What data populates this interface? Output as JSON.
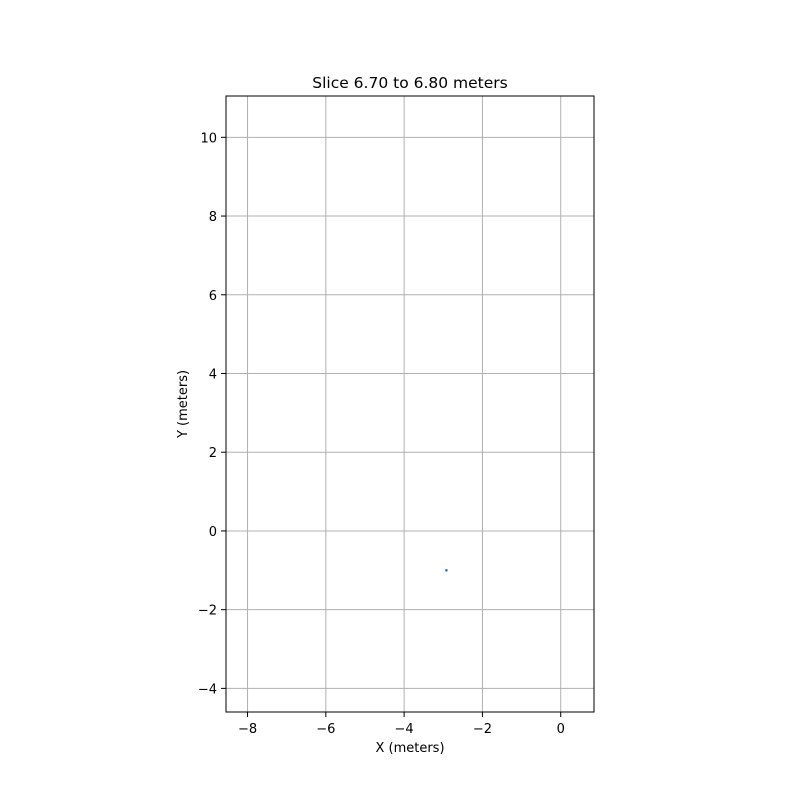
{
  "chart_data": {
    "type": "scatter",
    "title": "Slice 6.70 to 6.80 meters",
    "xlabel": "X (meters)",
    "ylabel": "Y (meters)",
    "xlim": [
      -8.55,
      0.85
    ],
    "ylim": [
      -4.6,
      11.05
    ],
    "xticks": [
      -8,
      -6,
      -4,
      -2,
      0
    ],
    "xtick_labels": [
      "−8",
      "−6",
      "−4",
      "−2",
      "0"
    ],
    "yticks": [
      -4,
      -2,
      0,
      2,
      4,
      6,
      8,
      10
    ],
    "ytick_labels": [
      "−4",
      "−2",
      "0",
      "2",
      "4",
      "6",
      "8",
      "10"
    ],
    "grid": true,
    "points": [
      {
        "x": -2.92,
        "y": -1.0
      }
    ],
    "colors": {
      "point": "#1f77b4",
      "grid": "#b0b0b0",
      "axes": "#000000"
    }
  }
}
